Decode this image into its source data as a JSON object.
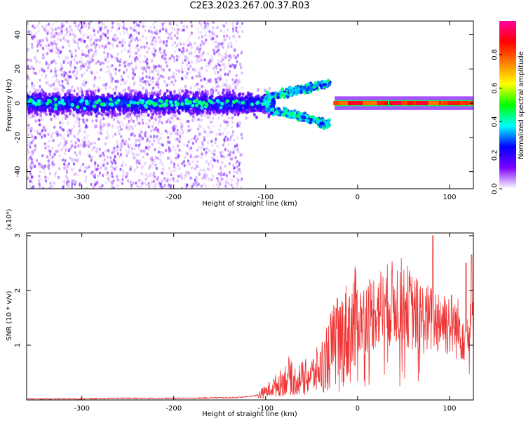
{
  "title": "C2E3.2023.267.00.37.R03",
  "chart_data": [
    {
      "type": "heatmap",
      "xlabel": "Height of straight line (km)",
      "ylabel": "Frequency (Hz)",
      "xlim": [
        -360,
        126
      ],
      "ylim": [
        -50,
        48
      ],
      "xticks": [
        -300,
        -200,
        -100,
        0,
        100
      ],
      "yticks": [
        -40,
        -20,
        0,
        20,
        40
      ],
      "xtick_labels": [
        "-300",
        "-200",
        "-100",
        "0",
        "100"
      ],
      "ytick_labels": [
        "-40",
        "-20",
        "0",
        "20",
        "40"
      ],
      "colorbar": {
        "label": "Normalized spectral amplitude",
        "range": [
          0,
          1
        ],
        "ticks": [
          0.0,
          0.2,
          0.4,
          0.6,
          0.8
        ],
        "tick_labels": [
          "0.0",
          "0.2",
          "0.4",
          "0.6",
          "0.8"
        ],
        "colormap": [
          "#ffffff",
          "#7f00ff",
          "#0000ff",
          "#00ffff",
          "#00ff00",
          "#ffff00",
          "#ff8000",
          "#ff0000",
          "#ff00a0"
        ]
      },
      "description_of_features": {
        "noise_band_x": [
          -360,
          -125
        ],
        "main_band_center_hz": 0,
        "tail_segment": {
          "x": [
            -100,
            -30
          ],
          "y": [
            -15,
            10
          ]
        },
        "strong_line_x": [
          -25,
          126
        ]
      },
      "grid": false
    },
    {
      "type": "line",
      "xlabel": "Height of straight line (km)",
      "ylabel": "SNR (10 * v/v)",
      "ylabel_multiplier": "(x10⁴)",
      "xlim": [
        -360,
        126
      ],
      "ylim": [
        0,
        3.05
      ],
      "xticks": [
        -300,
        -200,
        -100,
        0,
        100
      ],
      "yticks": [
        1,
        2,
        3
      ],
      "xtick_labels": [
        "-300",
        "-200",
        "-100",
        "0",
        "100"
      ],
      "ytick_labels": [
        "1",
        "2",
        "3"
      ],
      "color": "#ee3333",
      "series": [
        {
          "x": [
            -360,
            -340,
            -300,
            -260,
            -220,
            -200,
            -180,
            -160,
            -140,
            -125,
            -110,
            -100,
            -90,
            -80,
            -75,
            -70,
            -60,
            -50,
            -40,
            -30,
            -20,
            -10,
            0,
            10,
            20,
            30,
            40,
            50,
            60,
            70,
            80,
            90,
            100,
            110,
            120,
            126
          ],
          "y": [
            0.02,
            0.02,
            0.02,
            0.03,
            0.03,
            0.03,
            0.03,
            0.04,
            0.04,
            0.05,
            0.08,
            0.15,
            0.25,
            0.35,
            0.45,
            0.35,
            0.4,
            0.45,
            0.6,
            0.9,
            1.1,
            1.25,
            1.4,
            1.55,
            1.65,
            1.72,
            1.78,
            1.8,
            1.6,
            1.5,
            1.45,
            1.5,
            1.4,
            1.3,
            1.2,
            1.3
          ],
          "peaks": [
            {
              "x": -22,
              "y": 1.85
            },
            {
              "x": 82,
              "y": 3.0
            },
            {
              "x": 118,
              "y": 2.5
            },
            {
              "x": 124,
              "y": 2.65
            }
          ]
        }
      ],
      "grid": false
    }
  ]
}
